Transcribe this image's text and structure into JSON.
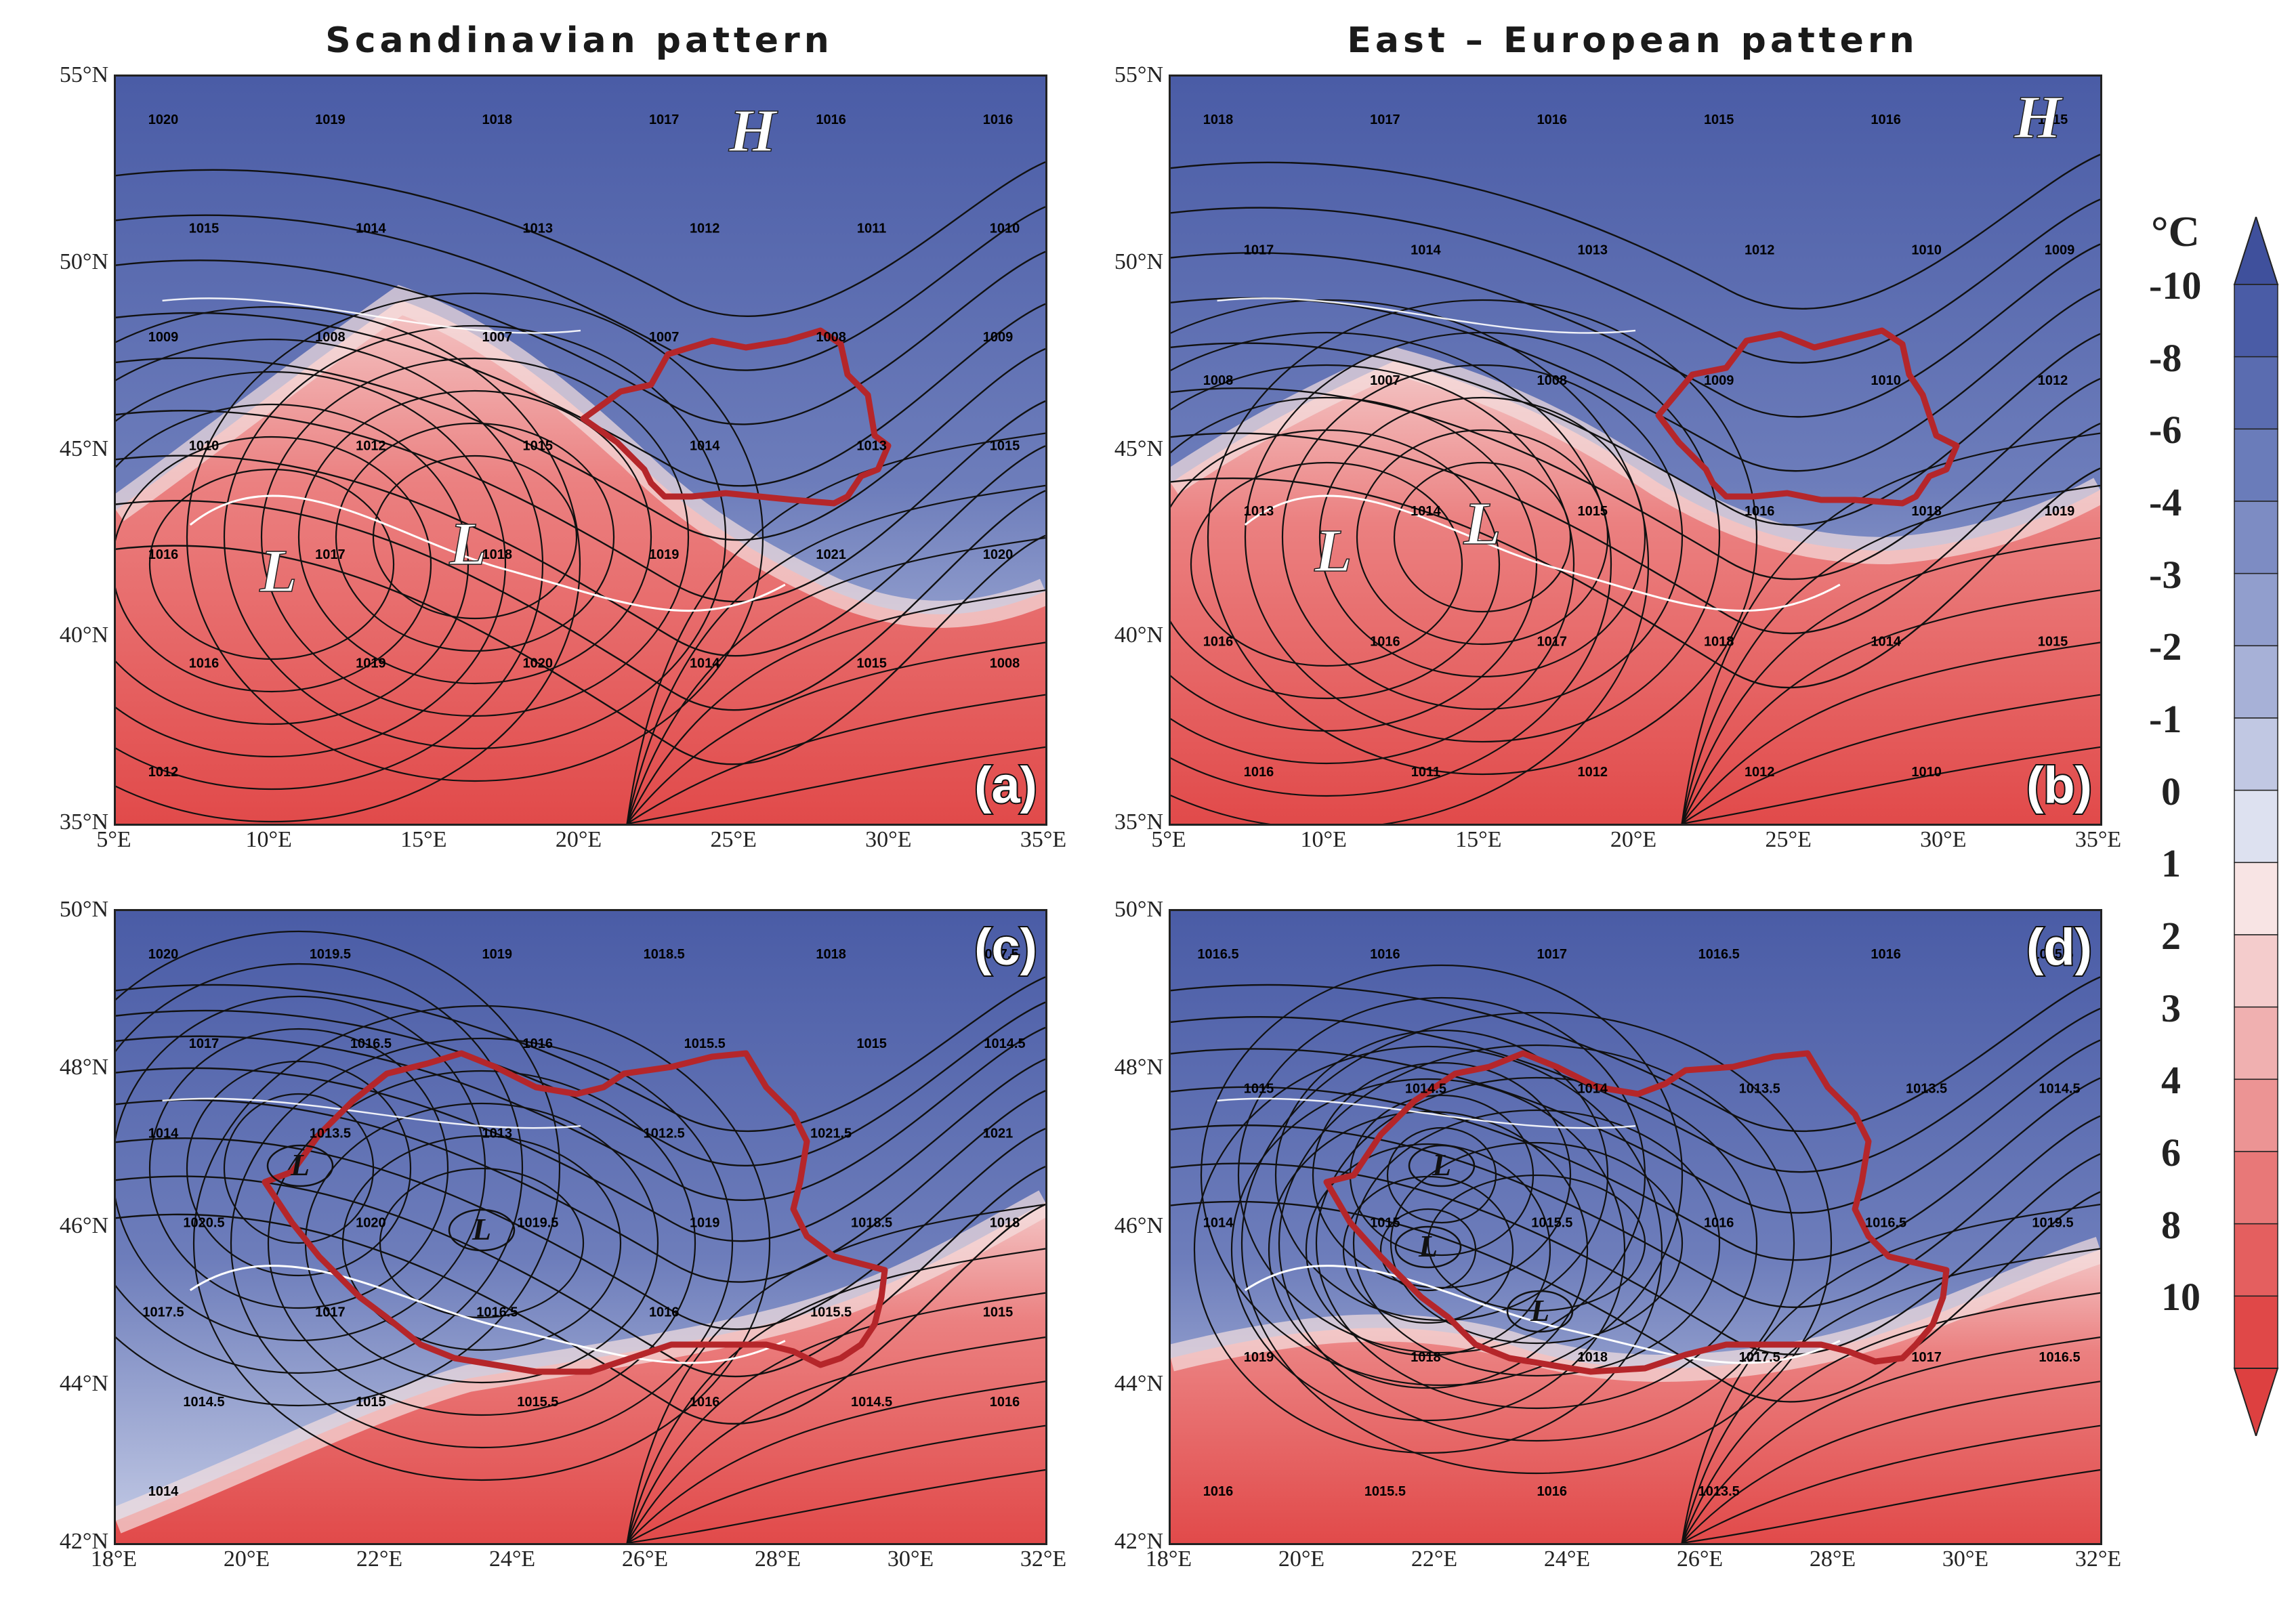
{
  "titles": {
    "left": "Scandinavian pattern",
    "right": "East – European pattern"
  },
  "panels": {
    "a": {
      "tag": "(a)",
      "lat_labels": [
        "55°N",
        "50°N",
        "45°N",
        "40°N",
        "35°N"
      ],
      "lon_labels": [
        "5°E",
        "10°E",
        "15°E",
        "20°E",
        "25°E",
        "30°E",
        "35°E"
      ],
      "pressure_centers": [
        "H",
        "L",
        "L"
      ],
      "isobar_labels": [
        "1020",
        "1019",
        "1018",
        "1017",
        "1016",
        "1016",
        "1015",
        "1014",
        "1013",
        "1012",
        "1011",
        "1010",
        "1009",
        "1008",
        "1007",
        "1007",
        "1008",
        "1009",
        "1010",
        "1012",
        "1015",
        "1014",
        "1013",
        "1015",
        "1016",
        "1017",
        "1018",
        "1019",
        "1021",
        "1020",
        "1016",
        "1019",
        "1020",
        "1014",
        "1015",
        "1008",
        "1012"
      ]
    },
    "b": {
      "tag": "(b)",
      "lat_labels": [
        "55°N",
        "50°N",
        "45°N",
        "40°N",
        "35°N"
      ],
      "lon_labels": [
        "5°E",
        "10°E",
        "15°E",
        "20°E",
        "25°E",
        "30°E",
        "35°E"
      ],
      "pressure_centers": [
        "H",
        "L",
        "L"
      ],
      "isobar_labels": [
        "1018",
        "1017",
        "1016",
        "1015",
        "1016",
        "1015",
        "1017",
        "1014",
        "1013",
        "1012",
        "1010",
        "1009",
        "1008",
        "1007",
        "1008",
        "1009",
        "1010",
        "1012",
        "1013",
        "1014",
        "1015",
        "1016",
        "1018",
        "1019",
        "1016",
        "1016",
        "1017",
        "1018",
        "1014",
        "1015",
        "1016",
        "1011",
        "1012",
        "1012",
        "1010"
      ]
    },
    "c": {
      "tag": "(c)",
      "lat_labels": [
        "50°N",
        "48°N",
        "46°N",
        "44°N",
        "42°N"
      ],
      "lon_labels": [
        "18°E",
        "20°E",
        "22°E",
        "24°E",
        "26°E",
        "28°E",
        "30°E",
        "32°E"
      ],
      "pressure_centers": [
        "L",
        "L"
      ],
      "isobar_labels": [
        "1020",
        "1019.5",
        "1019",
        "1018.5",
        "1018",
        "1017.5",
        "1017",
        "1016.5",
        "1016",
        "1015.5",
        "1015",
        "1014.5",
        "1014",
        "1013.5",
        "1013",
        "1012.5",
        "1021.5",
        "1021",
        "1020.5",
        "1020",
        "1019.5",
        "1019",
        "1018.5",
        "1018",
        "1017.5",
        "1017",
        "1016.5",
        "1016",
        "1015.5",
        "1015",
        "1014.5",
        "1015",
        "1015.5",
        "1016",
        "1014.5",
        "1016",
        "1014"
      ]
    },
    "d": {
      "tag": "(d)",
      "lat_labels": [
        "50°N",
        "48°N",
        "46°N",
        "44°N",
        "42°N"
      ],
      "lon_labels": [
        "18°E",
        "20°E",
        "22°E",
        "24°E",
        "26°E",
        "28°E",
        "30°E",
        "32°E"
      ],
      "pressure_centers": [
        "L",
        "L",
        "L"
      ],
      "isobar_labels": [
        "1016.5",
        "1016",
        "1017",
        "1016.5",
        "1016",
        "1015.5",
        "1015",
        "1014.5",
        "1014",
        "1013.5",
        "1013.5",
        "1014.5",
        "1014",
        "1015",
        "1015.5",
        "1016",
        "1016.5",
        "1019.5",
        "1019",
        "1018",
        "1018",
        "1017.5",
        "1017",
        "1016.5",
        "1016",
        "1015.5",
        "1016",
        "1013.5"
      ]
    }
  },
  "colorbar": {
    "unit": "°C",
    "labels": [
      "-10",
      "-8",
      "-6",
      "-4",
      "-3",
      "-2",
      "-1",
      "0",
      "1",
      "2",
      "3",
      "4",
      "6",
      "8",
      "10"
    ],
    "colors": [
      "#4a5ca6",
      "#5a6cb0",
      "#6a7cba",
      "#7d8cc3",
      "#919ecd",
      "#a7b1d7",
      "#c1c8e3",
      "#dde1f0",
      "#f8e4e4",
      "#f4cccc",
      "#f0b0b0",
      "#ec9494",
      "#e87878",
      "#e45f5f",
      "#e04848"
    ],
    "extension_low": "#3f509c",
    "extension_high": "#dd4040"
  },
  "colors": {
    "border_romania": "#b5262a",
    "isobar": "#111111",
    "coastline": "#ffffff"
  }
}
